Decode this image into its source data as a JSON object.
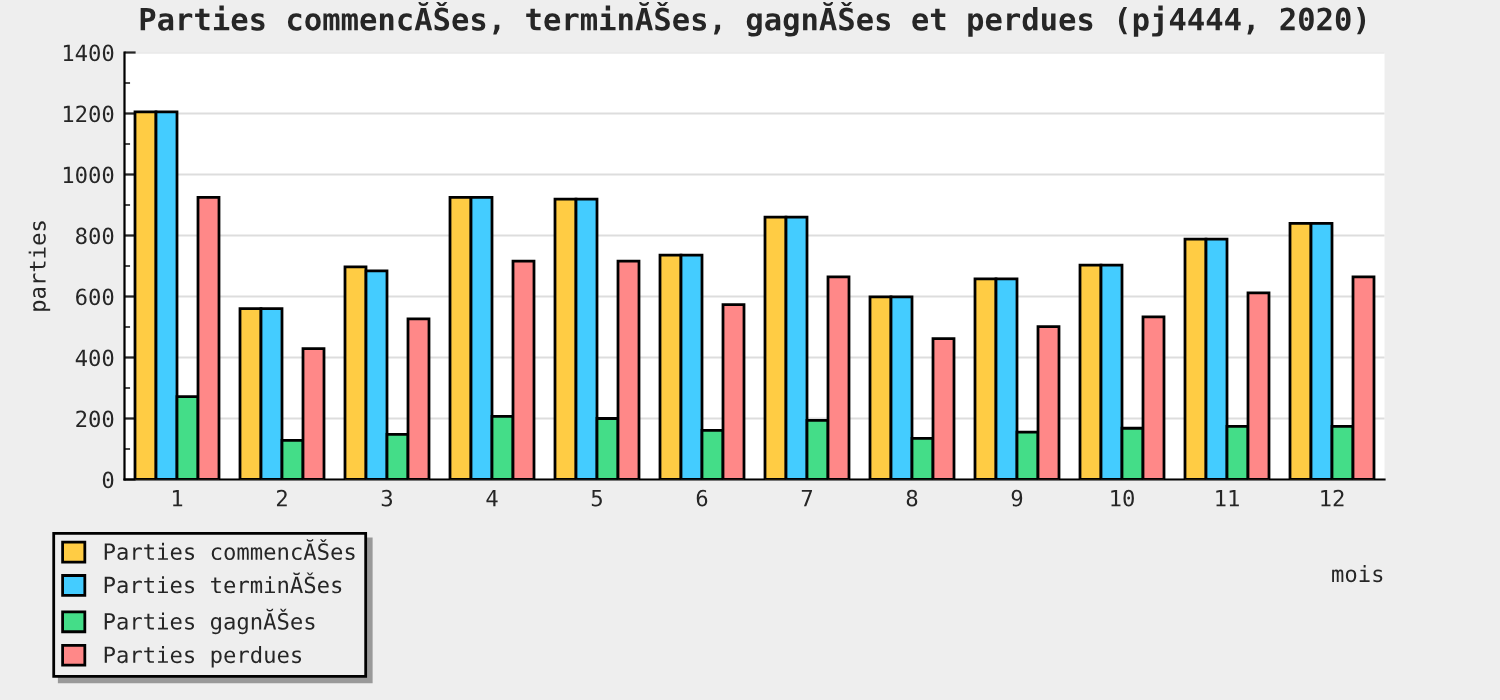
{
  "chart_data": {
    "type": "bar",
    "title": "Parties commencĂŠes, terminĂŠes, gagnĂŠes et perdues (pj4444, 2020)",
    "xlabel": "mois",
    "ylabel": "parties",
    "categories": [
      "1",
      "2",
      "3",
      "4",
      "5",
      "6",
      "7",
      "8",
      "9",
      "10",
      "11",
      "12"
    ],
    "series": [
      {
        "name": "Parties commencĂŠes",
        "color": "#ffcc44",
        "values": [
          1205,
          560,
          697,
          925,
          919,
          736,
          860,
          599,
          658,
          703,
          788,
          840
        ]
      },
      {
        "name": "Parties terminĂŠes",
        "color": "#44ccff",
        "values": [
          1205,
          560,
          684,
          925,
          919,
          736,
          860,
          599,
          658,
          703,
          788,
          840
        ]
      },
      {
        "name": "Parties gagnĂŠes",
        "color": "#44dd88",
        "values": [
          272,
          128,
          148,
          207,
          200,
          161,
          194,
          135,
          155,
          168,
          174,
          174
        ]
      },
      {
        "name": "Parties perdues",
        "color": "#ff8888",
        "values": [
          925,
          429,
          527,
          716,
          716,
          573,
          664,
          462,
          501,
          533,
          612,
          664
        ]
      }
    ],
    "ylim": [
      0,
      1400
    ],
    "yticks": [
      0,
      200,
      400,
      600,
      800,
      1000,
      1200,
      1400
    ],
    "grid": "y",
    "legend": "bottom left"
  }
}
